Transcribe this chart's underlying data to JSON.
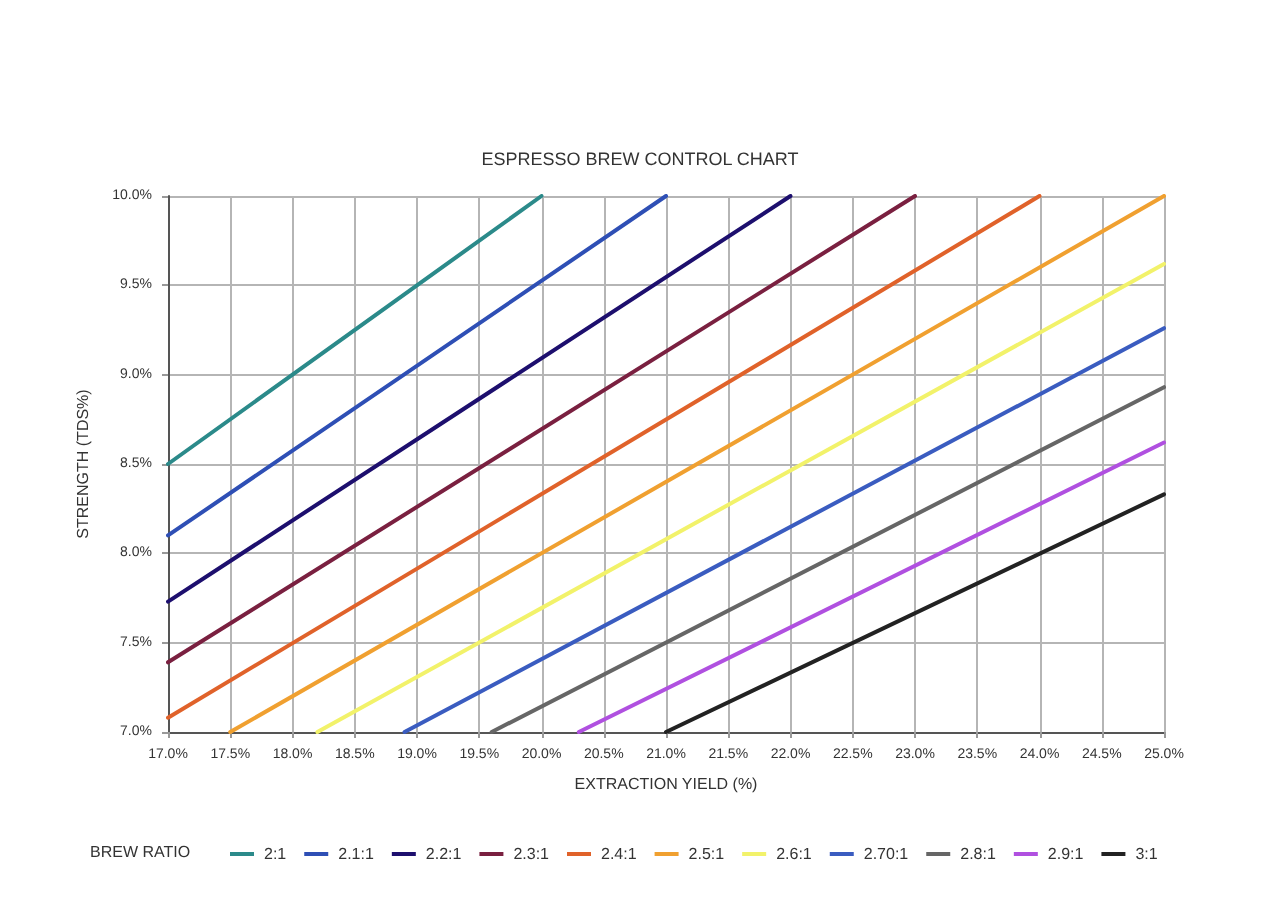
{
  "chart_data": {
    "type": "line",
    "title": "ESPRESSO BREW CONTROL CHART",
    "xlabel": "EXTRACTION YIELD (%)",
    "ylabel": "STRENGTH (TDS%)",
    "legend_title": "BREW RATIO",
    "xlim": [
      17,
      25
    ],
    "ylim": [
      7,
      10
    ],
    "xticks": [
      {
        "value": 17,
        "label": "17.0%"
      },
      {
        "value": 17.5,
        "label": "17.5%"
      },
      {
        "value": 18,
        "label": "18.0%"
      },
      {
        "value": 18.5,
        "label": "18.5%"
      },
      {
        "value": 19,
        "label": "19.0%"
      },
      {
        "value": 19.5,
        "label": "19.5%"
      },
      {
        "value": 20,
        "label": "20.0%"
      },
      {
        "value": 20.5,
        "label": "20.5%"
      },
      {
        "value": 21,
        "label": "21.0%"
      },
      {
        "value": 21.5,
        "label": "21.5%"
      },
      {
        "value": 22,
        "label": "22.0%"
      },
      {
        "value": 22.5,
        "label": "22.5%"
      },
      {
        "value": 23,
        "label": "23.0%"
      },
      {
        "value": 23.5,
        "label": "23.5%"
      },
      {
        "value": 24,
        "label": "24.0%"
      },
      {
        "value": 24.5,
        "label": "24.5%"
      },
      {
        "value": 25,
        "label": "25.0%"
      }
    ],
    "yticks": [
      {
        "value": 7,
        "label": "7.0%"
      },
      {
        "value": 7.5,
        "label": "7.5%"
      },
      {
        "value": 8,
        "label": "8.0%"
      },
      {
        "value": 8.5,
        "label": "8.5%"
      },
      {
        "value": 9,
        "label": "9.0%"
      },
      {
        "value": 9.5,
        "label": "9.5%"
      },
      {
        "value": 10,
        "label": "10.0%"
      }
    ],
    "grid": true,
    "legend": "bottom",
    "marker": "none",
    "line_style": "solid",
    "series": [
      {
        "name": "2:1",
        "color": "#2b8a8a",
        "x": [
          17,
          20
        ],
        "values": [
          8.5,
          10
        ]
      },
      {
        "name": "2.1:1",
        "color": "#2e4fb5",
        "x": [
          17,
          21
        ],
        "values": [
          8.1,
          10
        ]
      },
      {
        "name": "2.2:1",
        "color": "#1d0f6e",
        "x": [
          17,
          22
        ],
        "values": [
          7.73,
          10
        ]
      },
      {
        "name": "2.3:1",
        "color": "#7a2040",
        "x": [
          17,
          23
        ],
        "values": [
          7.39,
          10
        ]
      },
      {
        "name": "2.4:1",
        "color": "#e0622a",
        "x": [
          17,
          24
        ],
        "values": [
          7.08,
          10
        ]
      },
      {
        "name": "2.5:1",
        "color": "#f0a030",
        "x": [
          17.5,
          25
        ],
        "values": [
          7,
          10
        ]
      },
      {
        "name": "2.6:1",
        "color": "#f2f26a",
        "x": [
          18.2,
          25
        ],
        "values": [
          7,
          9.62
        ]
      },
      {
        "name": "2.70:1",
        "color": "#3a5cc0",
        "x": [
          18.9,
          25
        ],
        "values": [
          7,
          9.26
        ]
      },
      {
        "name": "2.8:1",
        "color": "#666666",
        "x": [
          19.6,
          25
        ],
        "values": [
          7,
          8.93
        ]
      },
      {
        "name": "2.9:1",
        "color": "#b050e0",
        "x": [
          20.3,
          25
        ],
        "values": [
          7,
          8.62
        ]
      },
      {
        "name": "3:1",
        "color": "#222222",
        "x": [
          21,
          25
        ],
        "values": [
          7,
          8.33
        ]
      }
    ]
  }
}
